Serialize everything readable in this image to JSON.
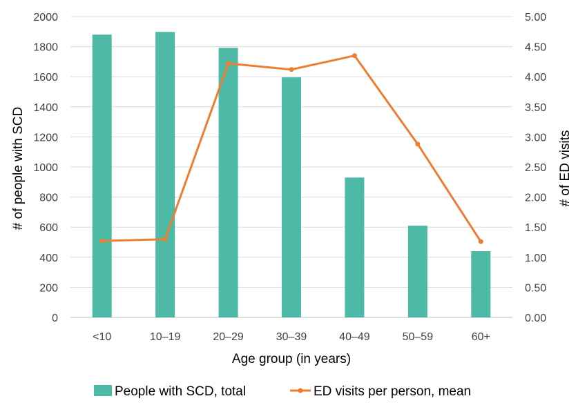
{
  "chart_data": {
    "type": "bar",
    "categories": [
      "<10",
      "10–19",
      "20–29",
      "30–39",
      "40–49",
      "50–59",
      "60+"
    ],
    "series": [
      {
        "name": "People with SCD, total",
        "type": "bar",
        "axis": "left",
        "color": "#4dbaa8",
        "values": [
          1880,
          1898,
          1792,
          1596,
          930,
          610,
          440
        ]
      },
      {
        "name": "ED visits per person, mean",
        "type": "line",
        "axis": "right",
        "color": "#ed7d31",
        "values": [
          1.27,
          1.3,
          4.22,
          4.12,
          4.35,
          2.88,
          1.26
        ]
      }
    ],
    "xlabel": "Age group (in years)",
    "ylabel": "# of people with SCD",
    "y2label": "# of ED visits",
    "ylim": [
      0,
      2000
    ],
    "y2lim": [
      0,
      5
    ],
    "yticks": [
      "0",
      "200",
      "400",
      "600",
      "800",
      "1000",
      "1200",
      "1400",
      "1600",
      "1800",
      "2000"
    ],
    "y2ticks": [
      "0.00",
      "0.50",
      "1.00",
      "1.50",
      "2.00",
      "2.50",
      "3.00",
      "3.50",
      "4.00",
      "4.50",
      "5.00"
    ],
    "grid": true,
    "legend": "bottom"
  }
}
